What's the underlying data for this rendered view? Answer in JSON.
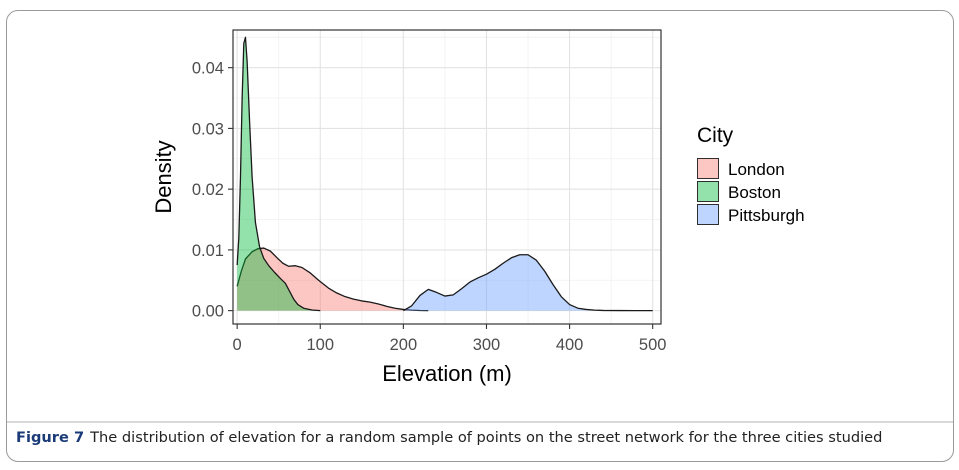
{
  "caption": {
    "label": "Figure 7",
    "text": "The distribution of elevation for a random sample of points on the street network for the three cities studied"
  },
  "chart_data": {
    "type": "area",
    "title": "",
    "xlabel": "Elevation (m)",
    "ylabel": "Density",
    "xlim": [
      -5,
      510
    ],
    "ylim": [
      -0.0022,
      0.0462
    ],
    "x_ticks": [
      0,
      100,
      200,
      300,
      400,
      500
    ],
    "y_ticks": [
      0.0,
      0.01,
      0.02,
      0.03,
      0.04
    ],
    "y_tick_labels": [
      "0.00",
      "0.01",
      "0.02",
      "0.03",
      "0.04"
    ],
    "grid": true,
    "legend": {
      "title": "City",
      "position": "right"
    },
    "series": [
      {
        "name": "London",
        "color": "#F8766D",
        "points": [
          [
            0,
            0.004
          ],
          [
            5,
            0.0065
          ],
          [
            10,
            0.0085
          ],
          [
            18,
            0.0097
          ],
          [
            25,
            0.0102
          ],
          [
            32,
            0.0103
          ],
          [
            40,
            0.0098
          ],
          [
            48,
            0.0087
          ],
          [
            55,
            0.0078
          ],
          [
            62,
            0.0073
          ],
          [
            70,
            0.0074
          ],
          [
            78,
            0.0071
          ],
          [
            88,
            0.0062
          ],
          [
            98,
            0.005
          ],
          [
            110,
            0.0037
          ],
          [
            120,
            0.0029
          ],
          [
            130,
            0.0023
          ],
          [
            140,
            0.0019
          ],
          [
            150,
            0.0016
          ],
          [
            160,
            0.0014
          ],
          [
            170,
            0.0011
          ],
          [
            180,
            0.0007
          ],
          [
            190,
            0.0004
          ],
          [
            200,
            0.0002
          ],
          [
            210,
            8e-05
          ],
          [
            220,
            2e-05
          ],
          [
            230,
            0
          ]
        ]
      },
      {
        "name": "Boston",
        "color": "#00BA38",
        "points": [
          [
            0,
            0.0075
          ],
          [
            2,
            0.012
          ],
          [
            4,
            0.022
          ],
          [
            6,
            0.035
          ],
          [
            8,
            0.044
          ],
          [
            10,
            0.045
          ],
          [
            12,
            0.041
          ],
          [
            15,
            0.031
          ],
          [
            18,
            0.022
          ],
          [
            22,
            0.0145
          ],
          [
            27,
            0.0105
          ],
          [
            32,
            0.0086
          ],
          [
            38,
            0.0074
          ],
          [
            45,
            0.0063
          ],
          [
            52,
            0.0053
          ],
          [
            58,
            0.0045
          ],
          [
            63,
            0.0032
          ],
          [
            68,
            0.0019
          ],
          [
            73,
            0.001
          ],
          [
            80,
            0.0004
          ],
          [
            90,
            0.0001
          ],
          [
            100,
            0
          ]
        ]
      },
      {
        "name": "Pittsburgh",
        "color": "#619CFF",
        "points": [
          [
            200,
            0
          ],
          [
            210,
            0.0008
          ],
          [
            220,
            0.0025
          ],
          [
            230,
            0.0035
          ],
          [
            240,
            0.003
          ],
          [
            250,
            0.0024
          ],
          [
            260,
            0.0026
          ],
          [
            270,
            0.0036
          ],
          [
            280,
            0.0047
          ],
          [
            290,
            0.0054
          ],
          [
            300,
            0.006
          ],
          [
            310,
            0.0068
          ],
          [
            320,
            0.0078
          ],
          [
            330,
            0.0087
          ],
          [
            340,
            0.0092
          ],
          [
            350,
            0.0092
          ],
          [
            360,
            0.0083
          ],
          [
            370,
            0.0065
          ],
          [
            380,
            0.0043
          ],
          [
            390,
            0.0023
          ],
          [
            400,
            0.001
          ],
          [
            410,
            0.0004
          ],
          [
            420,
            0.0002
          ],
          [
            430,
            8e-05
          ],
          [
            440,
            3e-05
          ],
          [
            460,
            1e-05
          ],
          [
            500,
            0
          ]
        ]
      }
    ]
  }
}
